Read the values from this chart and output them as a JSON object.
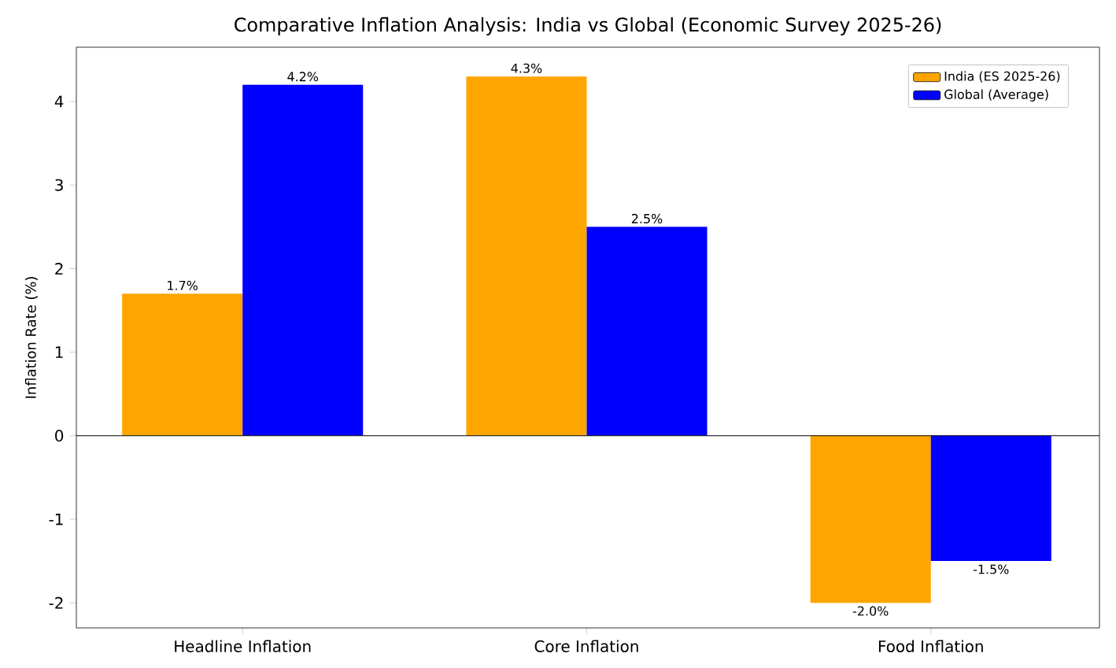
{
  "chart_data": {
    "type": "bar",
    "title": "Comparative Inflation Analysis: India vs Global (Economic Survey 2025-26)",
    "ylabel": "Inflation Rate (%)",
    "categories": [
      "Headline Inflation",
      "Core Inflation",
      "Food Inflation"
    ],
    "series": [
      {
        "name": "India (ES 2025-26)",
        "color": "#ffa500",
        "values": [
          1.7,
          4.3,
          -2.0
        ],
        "value_labels": [
          "1.7%",
          "4.3%",
          "-2.0%"
        ]
      },
      {
        "name": "Global (Average)",
        "color": "#0000ff",
        "values": [
          4.2,
          2.5,
          -1.5
        ],
        "value_labels": [
          "4.2%",
          "2.5%",
          "-1.5%"
        ]
      }
    ],
    "ylim": [
      -2.3,
      4.65
    ],
    "yticks": [
      -2,
      -1,
      0,
      1,
      2,
      3,
      4
    ],
    "ref_lines": [
      {
        "axis": "y",
        "value": 0,
        "color": "#000000"
      }
    ],
    "legend": "top right"
  }
}
